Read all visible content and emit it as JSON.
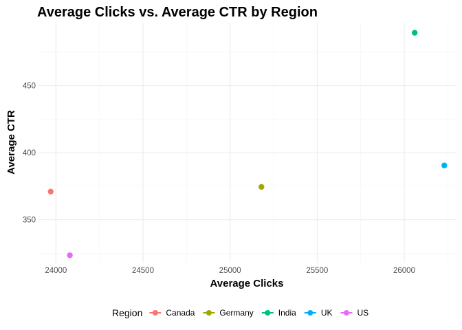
{
  "chart_data": {
    "type": "scatter",
    "title": "Average Clicks vs. Average CTR by Region",
    "xlabel": "Average Clicks",
    "ylabel": "Average CTR",
    "xlim": [
      23900,
      26300
    ],
    "ylim": [
      318,
      497
    ],
    "x_ticks": [
      24000,
      24500,
      25000,
      25500,
      26000
    ],
    "y_ticks": [
      350,
      400,
      450
    ],
    "grid": true,
    "legend": {
      "title": "Region",
      "placement": "bottom"
    },
    "series": [
      {
        "name": "Canada",
        "color": "#F8766D",
        "x": [
          23970
        ],
        "y": [
          371
        ]
      },
      {
        "name": "Germany",
        "color": "#A3A500",
        "x": [
          25180
        ],
        "y": [
          374.5
        ]
      },
      {
        "name": "India",
        "color": "#00BF7D",
        "x": [
          26060
        ],
        "y": [
          489.5
        ]
      },
      {
        "name": "UK",
        "color": "#00B0F6",
        "x": [
          26230
        ],
        "y": [
          390.5
        ]
      },
      {
        "name": "US",
        "color": "#E76BF3",
        "x": [
          24080
        ],
        "y": [
          323.5
        ]
      }
    ]
  }
}
